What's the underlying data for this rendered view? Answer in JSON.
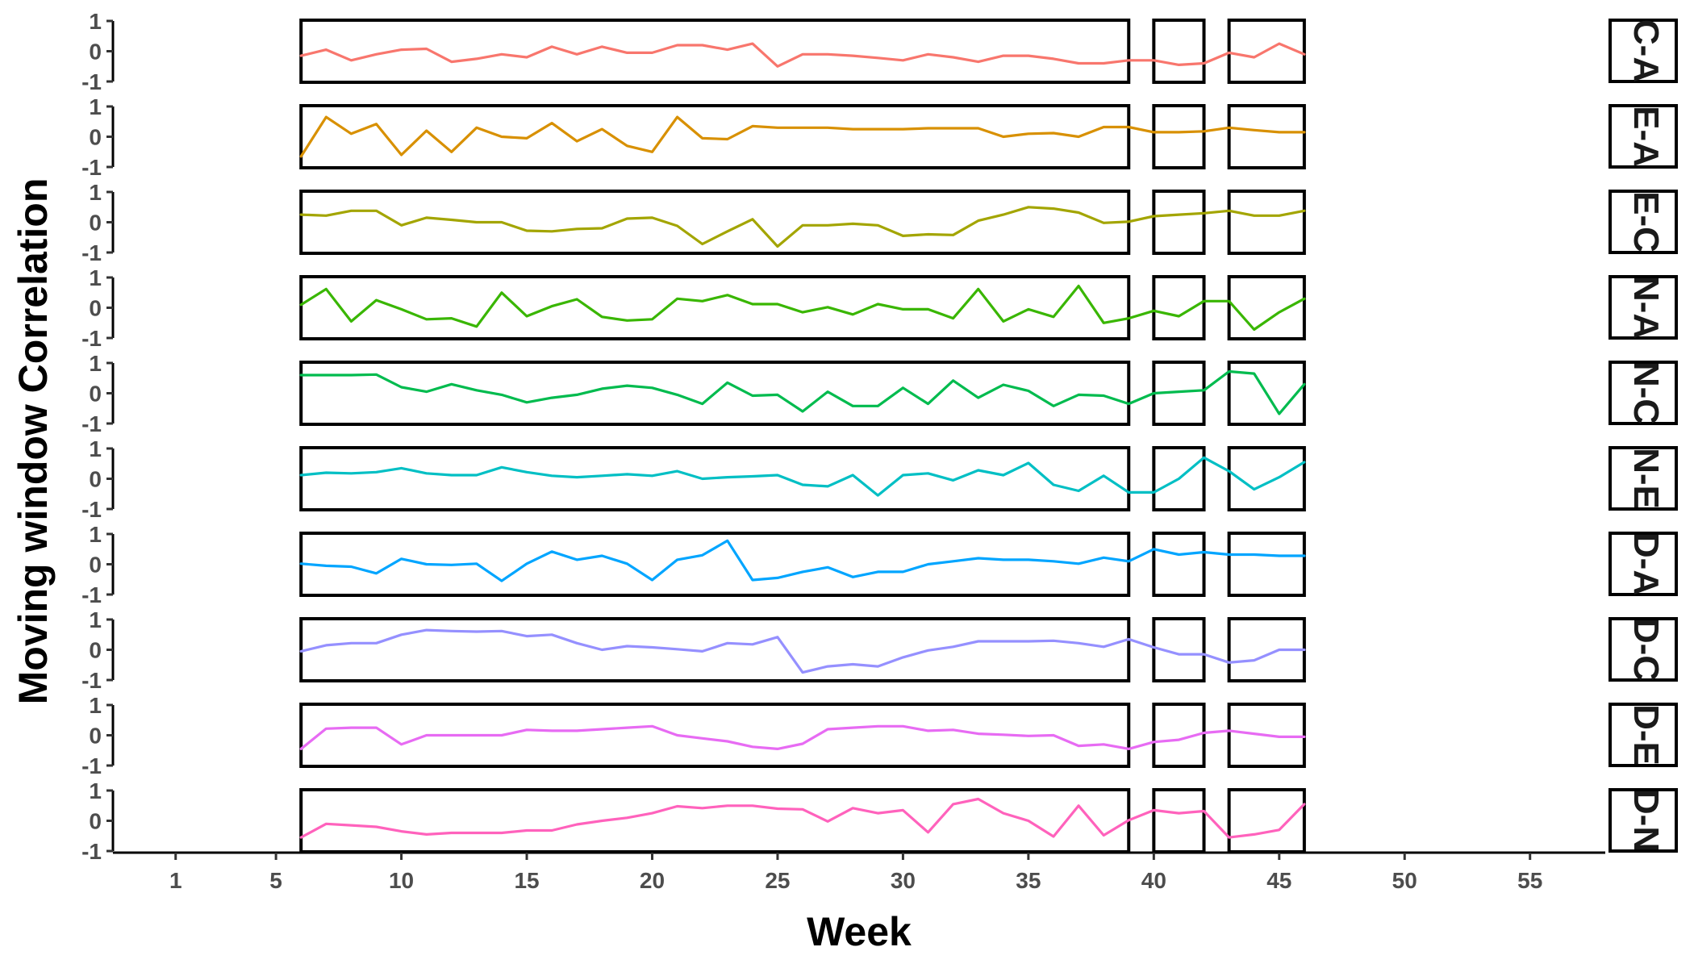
{
  "chart_data": {
    "type": "line",
    "xlabel": "Week",
    "ylabel": "Moving window Correlation",
    "xlim": [
      -1.5,
      58
    ],
    "ylim": [
      -1,
      1
    ],
    "x_ticks": [
      1,
      5,
      10,
      15,
      20,
      25,
      30,
      35,
      40,
      45,
      50,
      55
    ],
    "x_tick_labels": [
      "1",
      "5",
      "10",
      "15",
      "20",
      "25",
      "30",
      "35",
      "40",
      "45",
      "50",
      "55"
    ],
    "y_ticks": [
      -1,
      0,
      1
    ],
    "y_tick_labels": [
      "-1",
      "0",
      "1"
    ],
    "grid": false,
    "legend": "none",
    "highlight_windows": [
      [
        6,
        39
      ],
      [
        40,
        42
      ],
      [
        43,
        46
      ]
    ],
    "x": [
      6,
      7,
      8,
      9,
      10,
      11,
      12,
      13,
      14,
      15,
      16,
      17,
      18,
      19,
      20,
      21,
      22,
      23,
      24,
      25,
      26,
      27,
      28,
      29,
      30,
      31,
      32,
      33,
      34,
      35,
      36,
      37,
      38,
      39,
      40,
      41,
      42,
      43,
      44,
      45,
      46
    ],
    "series": [
      {
        "name": "C-A",
        "color": "#F8766D",
        "values": [
          -0.15,
          0.05,
          -0.3,
          -0.1,
          0.05,
          0.08,
          -0.35,
          -0.25,
          -0.1,
          -0.2,
          0.15,
          -0.1,
          0.15,
          -0.05,
          -0.05,
          0.2,
          0.2,
          0.05,
          0.25,
          -0.5,
          -0.1,
          -0.1,
          -0.15,
          -0.22,
          -0.3,
          -0.1,
          -0.2,
          -0.35,
          -0.15,
          -0.15,
          -0.25,
          -0.4,
          -0.4,
          -0.3,
          -0.3,
          -0.45,
          -0.4,
          -0.05,
          -0.2,
          0.25,
          -0.1
        ]
      },
      {
        "name": "E-A",
        "color": "#D89000",
        "values": [
          -0.65,
          0.65,
          0.1,
          0.42,
          -0.6,
          0.2,
          -0.5,
          0.3,
          0.0,
          -0.05,
          0.45,
          -0.15,
          0.25,
          -0.3,
          -0.5,
          0.65,
          -0.05,
          -0.08,
          0.35,
          0.3,
          0.3,
          0.3,
          0.25,
          0.25,
          0.25,
          0.28,
          0.28,
          0.28,
          0.0,
          0.1,
          0.12,
          0.0,
          0.32,
          0.32,
          0.15,
          0.15,
          0.18,
          0.3,
          0.22,
          0.15,
          0.15
        ]
      },
      {
        "name": "E-C",
        "color": "#A3A500",
        "values": [
          0.25,
          0.22,
          0.38,
          0.38,
          -0.1,
          0.15,
          0.08,
          0.0,
          0.0,
          -0.28,
          -0.3,
          -0.22,
          -0.2,
          0.12,
          0.15,
          -0.12,
          -0.72,
          -0.3,
          0.1,
          -0.8,
          -0.1,
          -0.1,
          -0.05,
          -0.1,
          -0.45,
          -0.4,
          -0.42,
          0.05,
          0.25,
          0.5,
          0.45,
          0.32,
          -0.02,
          0.02,
          0.2,
          0.25,
          0.3,
          0.38,
          0.22,
          0.22,
          0.38
        ]
      },
      {
        "name": "N-A",
        "color": "#39B600",
        "values": [
          0.1,
          0.62,
          -0.45,
          0.25,
          -0.05,
          -0.38,
          -0.35,
          -0.62,
          0.5,
          -0.28,
          0.05,
          0.28,
          -0.3,
          -0.42,
          -0.38,
          0.3,
          0.22,
          0.42,
          0.12,
          0.12,
          -0.15,
          0.02,
          -0.22,
          0.12,
          -0.05,
          -0.05,
          -0.35,
          0.62,
          -0.45,
          -0.05,
          -0.3,
          0.72,
          -0.5,
          -0.35,
          -0.1,
          -0.28,
          0.22,
          0.22,
          -0.72,
          -0.15,
          0.3
        ]
      },
      {
        "name": "N-C",
        "color": "#00BB4E",
        "values": [
          0.6,
          0.6,
          0.6,
          0.62,
          0.2,
          0.05,
          0.3,
          0.1,
          -0.05,
          -0.3,
          -0.15,
          -0.05,
          0.15,
          0.25,
          0.18,
          -0.05,
          -0.35,
          0.35,
          -0.08,
          -0.05,
          -0.6,
          0.05,
          -0.42,
          -0.42,
          0.18,
          -0.35,
          0.42,
          -0.15,
          0.28,
          0.08,
          -0.42,
          -0.05,
          -0.08,
          -0.35,
          0.0,
          0.05,
          0.1,
          0.72,
          0.65,
          -0.68,
          0.3
        ]
      },
      {
        "name": "N-E",
        "color": "#00BFC4",
        "values": [
          0.12,
          0.2,
          0.18,
          0.22,
          0.35,
          0.18,
          0.12,
          0.12,
          0.38,
          0.22,
          0.1,
          0.05,
          0.1,
          0.15,
          0.1,
          0.25,
          0.0,
          0.05,
          0.08,
          0.12,
          -0.2,
          -0.25,
          0.12,
          -0.55,
          0.12,
          0.18,
          -0.05,
          0.28,
          0.12,
          0.52,
          -0.2,
          -0.4,
          0.1,
          -0.45,
          -0.45,
          0.0,
          0.7,
          0.25,
          -0.35,
          0.05,
          0.55
        ]
      },
      {
        "name": "D-A",
        "color": "#00A5FF",
        "values": [
          0.02,
          -0.05,
          -0.08,
          -0.3,
          0.18,
          0.0,
          -0.02,
          0.02,
          -0.55,
          0.02,
          0.42,
          0.15,
          0.28,
          0.02,
          -0.52,
          0.15,
          0.3,
          0.78,
          -0.52,
          -0.45,
          -0.25,
          -0.1,
          -0.42,
          -0.25,
          -0.25,
          0.0,
          0.1,
          0.2,
          0.15,
          0.15,
          0.1,
          0.02,
          0.22,
          0.1,
          0.5,
          0.32,
          0.4,
          0.32,
          0.32,
          0.28,
          0.28
        ]
      },
      {
        "name": "D-C",
        "color": "#9590FF",
        "values": [
          -0.05,
          0.15,
          0.22,
          0.22,
          0.5,
          0.65,
          0.62,
          0.6,
          0.62,
          0.45,
          0.5,
          0.22,
          0.0,
          0.12,
          0.08,
          0.02,
          -0.05,
          0.22,
          0.18,
          0.42,
          -0.75,
          -0.55,
          -0.48,
          -0.55,
          -0.25,
          -0.02,
          0.1,
          0.28,
          0.28,
          0.28,
          0.3,
          0.22,
          0.1,
          0.35,
          0.08,
          -0.15,
          -0.15,
          -0.42,
          -0.35,
          0.0,
          0.0
        ]
      },
      {
        "name": "D-E",
        "color": "#E76BF3",
        "values": [
          -0.45,
          0.22,
          0.25,
          0.25,
          -0.3,
          0.0,
          0.0,
          0.0,
          0.0,
          0.18,
          0.15,
          0.15,
          0.2,
          0.25,
          0.3,
          0.0,
          -0.1,
          -0.2,
          -0.38,
          -0.45,
          -0.28,
          0.2,
          0.25,
          0.3,
          0.3,
          0.15,
          0.18,
          0.05,
          0.02,
          -0.02,
          0.0,
          -0.35,
          -0.3,
          -0.45,
          -0.22,
          -0.15,
          0.08,
          0.15,
          0.05,
          -0.05,
          -0.05
        ]
      },
      {
        "name": "D-N",
        "color": "#FF62BC",
        "values": [
          -0.55,
          -0.1,
          -0.15,
          -0.2,
          -0.35,
          -0.45,
          -0.4,
          -0.4,
          -0.4,
          -0.32,
          -0.32,
          -0.12,
          0.0,
          0.1,
          0.25,
          0.48,
          0.42,
          0.5,
          0.5,
          0.4,
          0.38,
          -0.02,
          0.42,
          0.25,
          0.35,
          -0.38,
          0.55,
          0.72,
          0.25,
          0.0,
          -0.52,
          0.5,
          -0.48,
          0.02,
          0.35,
          0.25,
          0.32,
          -0.55,
          -0.45,
          -0.3,
          0.55
        ]
      }
    ]
  }
}
